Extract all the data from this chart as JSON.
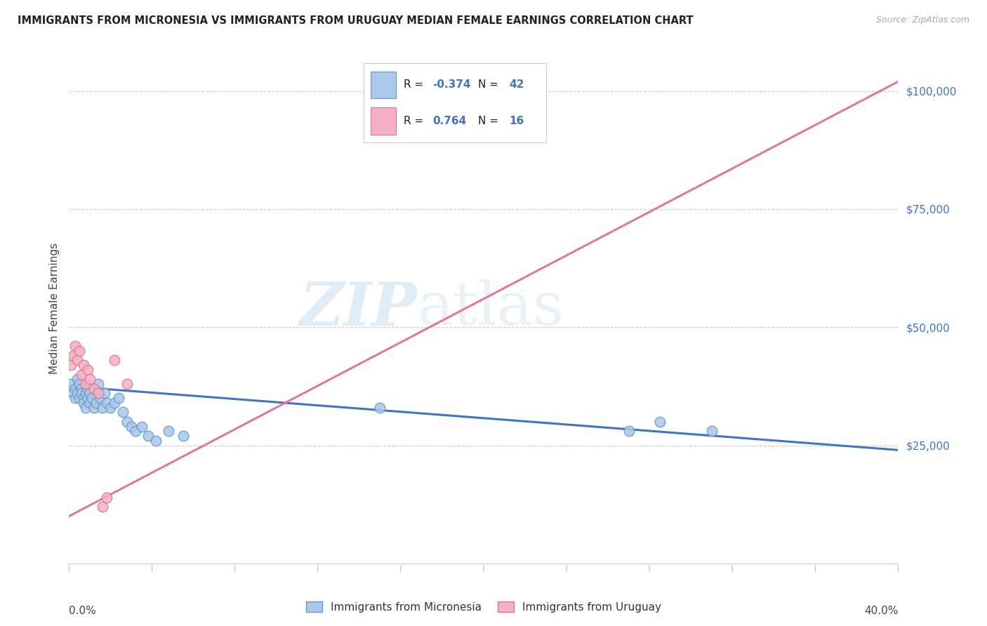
{
  "title": "IMMIGRANTS FROM MICRONESIA VS IMMIGRANTS FROM URUGUAY MEDIAN FEMALE EARNINGS CORRELATION CHART",
  "source": "Source: ZipAtlas.com",
  "ylabel": "Median Female Earnings",
  "xlim": [
    0.0,
    0.4
  ],
  "ylim": [
    0,
    108000
  ],
  "micronesia_color": "#aac8e8",
  "micronesia_edge": "#6699cc",
  "uruguay_color": "#f5b0c5",
  "uruguay_edge": "#d9768e",
  "line_blue": "#4472c4",
  "line_pink": "#e07898",
  "R_micronesia": "-0.374",
  "N_micronesia": "42",
  "R_uruguay": "0.764",
  "N_uruguay": "16",
  "label_micronesia": "Immigrants from Micronesia",
  "label_uruguay": "Immigrants from Uruguay",
  "yticks": [
    25000,
    50000,
    75000,
    100000
  ],
  "ytick_labels": [
    "$25,000",
    "$50,000",
    "$75,000",
    "$100,000"
  ],
  "micro_trend_x0": 0.0,
  "micro_trend_y0": 37500,
  "micro_trend_x1": 0.4,
  "micro_trend_y1": 24000,
  "uru_trend_x0": 0.0,
  "uru_trend_y0": 10000,
  "uru_trend_x1": 0.4,
  "uru_trend_y1": 102000,
  "micro_x": [
    0.001,
    0.002,
    0.003,
    0.003,
    0.004,
    0.004,
    0.005,
    0.005,
    0.006,
    0.006,
    0.007,
    0.007,
    0.008,
    0.008,
    0.009,
    0.009,
    0.01,
    0.01,
    0.011,
    0.012,
    0.013,
    0.014,
    0.015,
    0.016,
    0.017,
    0.018,
    0.02,
    0.022,
    0.024,
    0.026,
    0.028,
    0.03,
    0.032,
    0.035,
    0.038,
    0.042,
    0.048,
    0.055,
    0.15,
    0.27,
    0.285,
    0.31
  ],
  "micro_y": [
    38000,
    36000,
    37000,
    35000,
    39000,
    36000,
    38000,
    35000,
    37000,
    36000,
    35000,
    34000,
    36000,
    33000,
    35000,
    37000,
    34000,
    36000,
    35000,
    33000,
    34000,
    38000,
    35000,
    33000,
    36000,
    34000,
    33000,
    34000,
    35000,
    32000,
    30000,
    29000,
    28000,
    29000,
    27000,
    26000,
    28000,
    27000,
    33000,
    28000,
    30000,
    28000
  ],
  "uru_x": [
    0.001,
    0.002,
    0.003,
    0.004,
    0.005,
    0.006,
    0.007,
    0.008,
    0.009,
    0.01,
    0.012,
    0.014,
    0.016,
    0.018,
    0.022,
    0.028
  ],
  "uru_y": [
    42000,
    44000,
    46000,
    43000,
    45000,
    40000,
    42000,
    38000,
    41000,
    39000,
    37000,
    36000,
    12000,
    14000,
    43000,
    38000
  ]
}
